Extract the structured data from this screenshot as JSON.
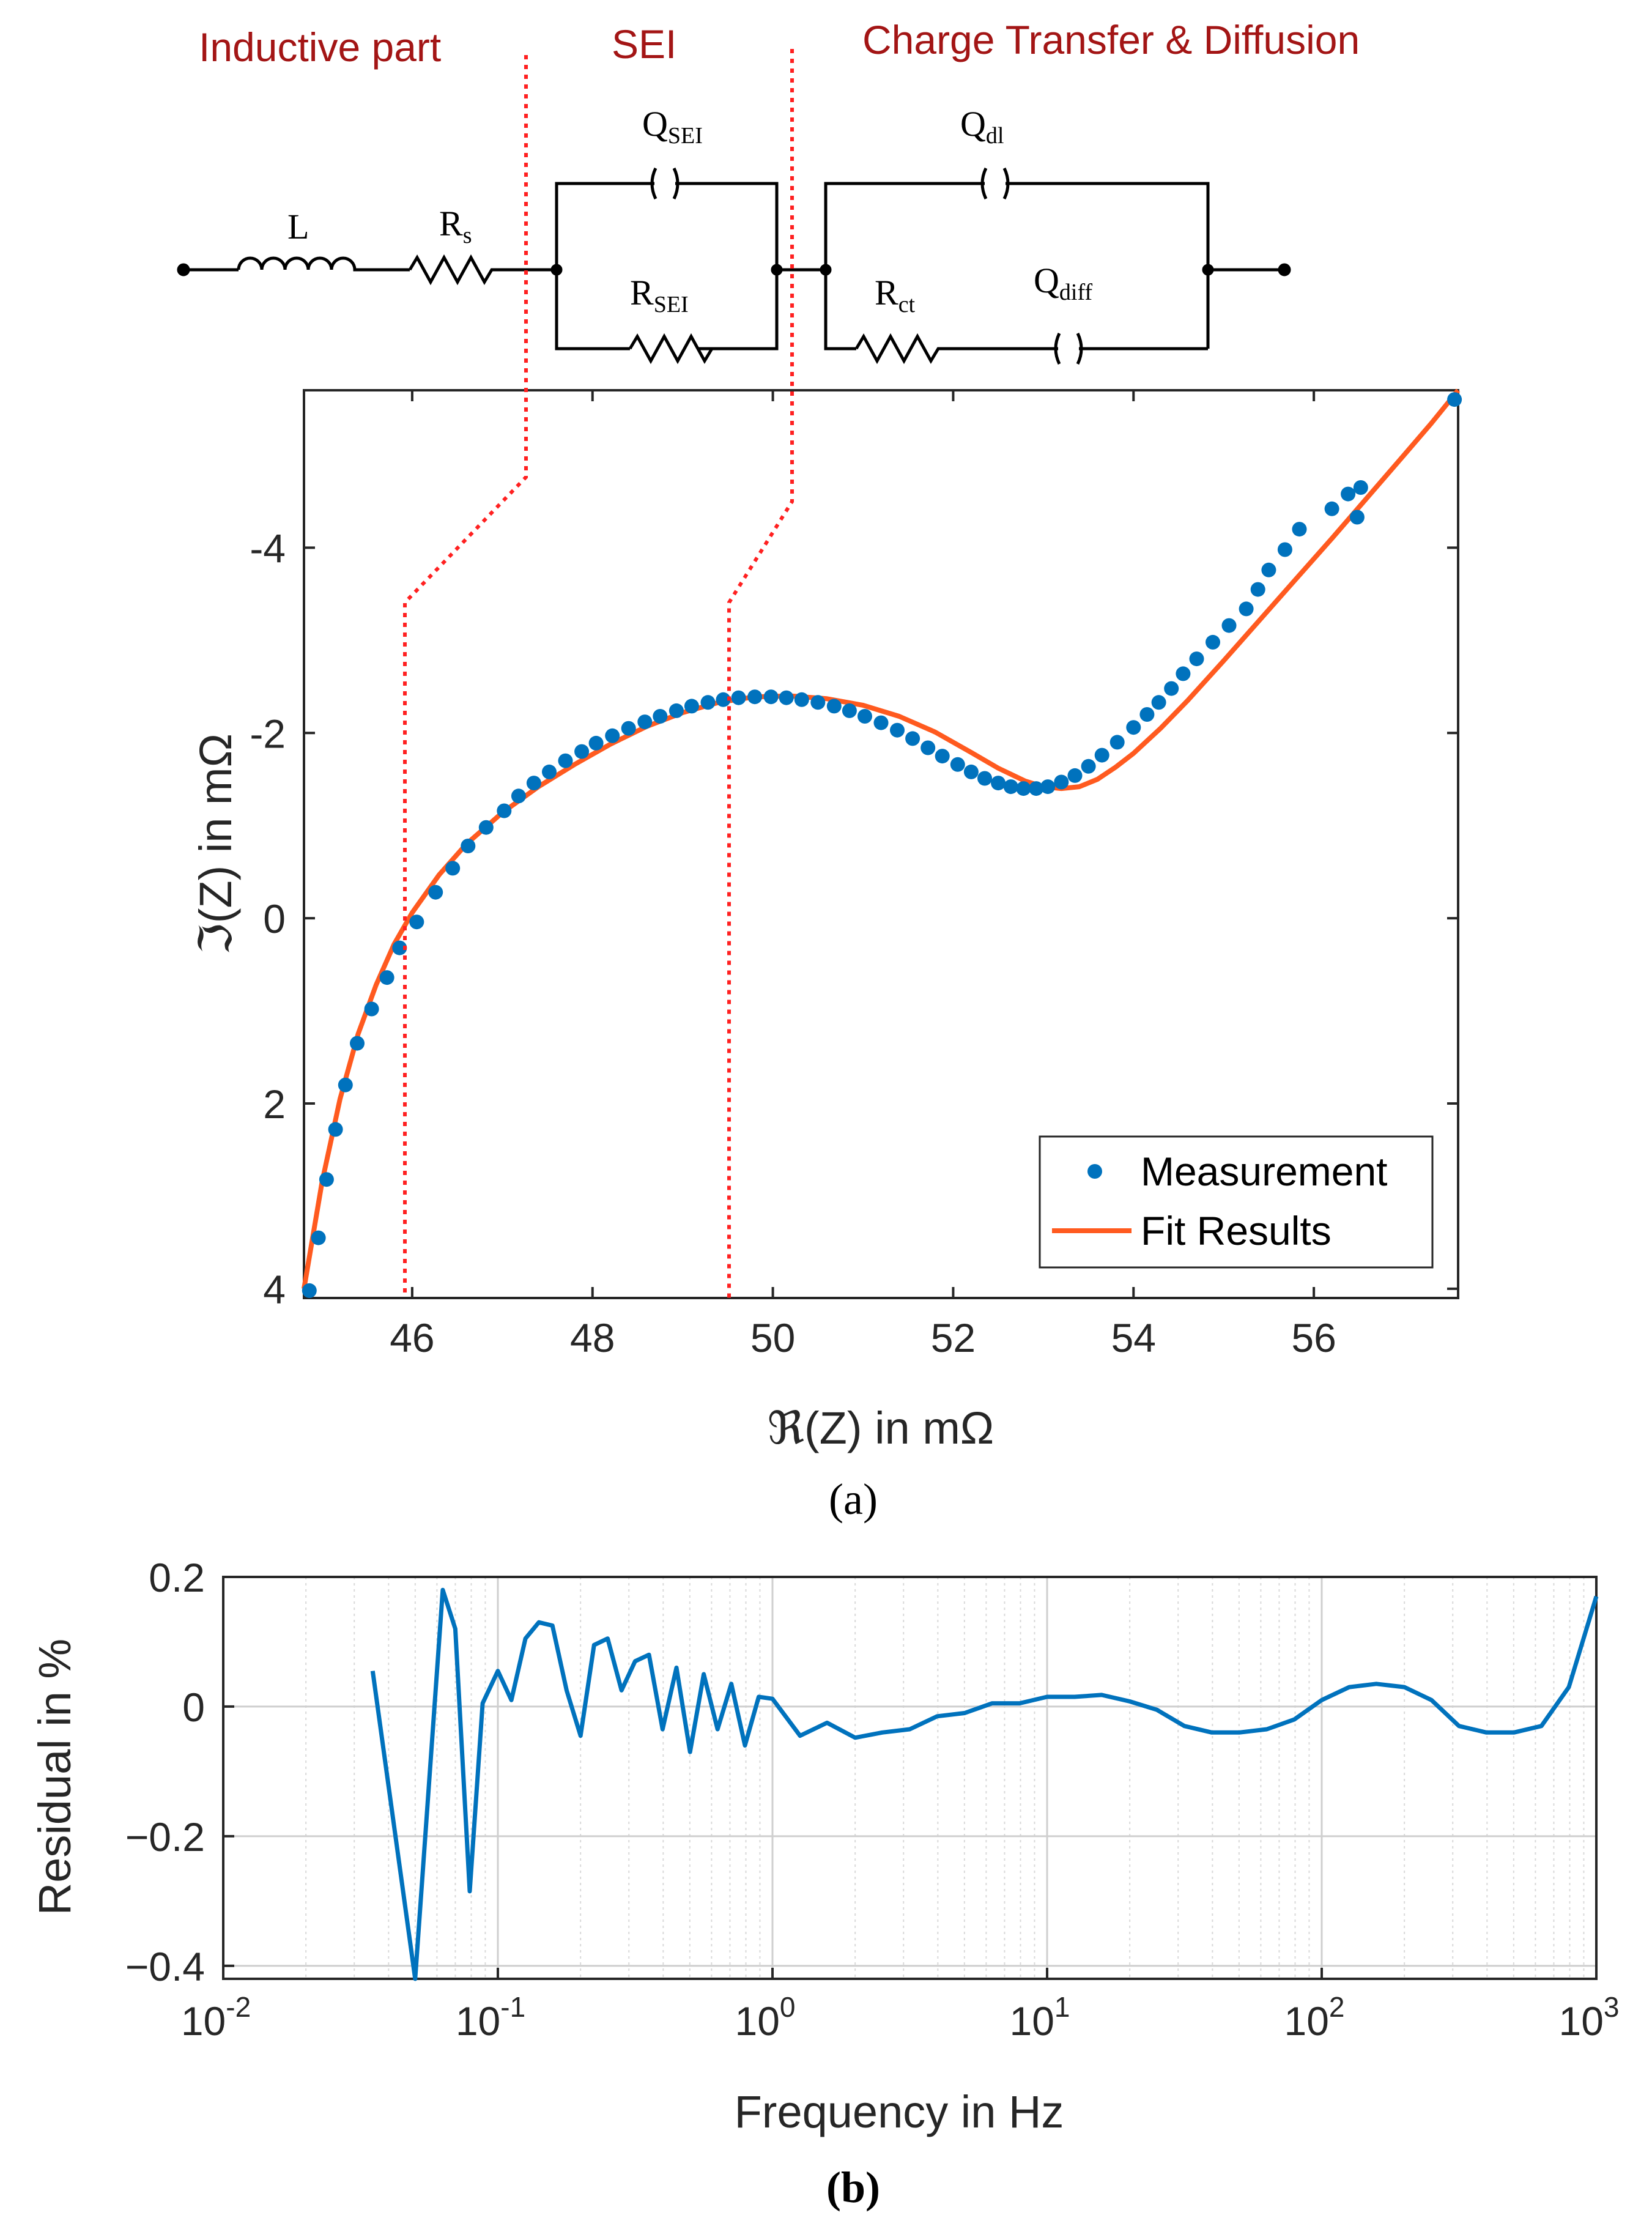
{
  "colors": {
    "region_label": "#a31515",
    "region_line": "#ff2020",
    "measurement": "#0072bd",
    "fit": "#ff5a1f",
    "residual": "#0072bd",
    "axis": "#262626",
    "grid": "#d9d9d9"
  },
  "circuit": {
    "regions": [
      "Inductive part",
      "SEI",
      "Charge Transfer & Diffusion"
    ],
    "components": {
      "L": {
        "main": "L",
        "sub": ""
      },
      "Rs": {
        "main": "R",
        "sub": "s"
      },
      "QSEI": {
        "main": "Q",
        "sub": "SEI"
      },
      "RSEI": {
        "main": "R",
        "sub": "SEI"
      },
      "Qdl": {
        "main": "Q",
        "sub": "dl"
      },
      "Rct": {
        "main": "R",
        "sub": "ct"
      },
      "Qdiff": {
        "main": "Q",
        "sub": "diff"
      }
    }
  },
  "panel_labels": {
    "a": "(a)",
    "b": "(b)"
  },
  "chart_data": [
    {
      "type": "scatter",
      "panel": "(a)",
      "title": "",
      "xlabel": "ℜ(Z) in mΩ",
      "ylabel": "ℑ(Z) in mΩ",
      "xlim": [
        44.8,
        57.6
      ],
      "ylim": [
        4.1,
        -5.7
      ],
      "y_reversed": true,
      "xticks": [
        46,
        48,
        50,
        52,
        54,
        56
      ],
      "xtick_labels": [
        "46",
        "48",
        "50",
        "52",
        "54",
        "56"
      ],
      "yticks": [
        -4,
        -2,
        0,
        2,
        4
      ],
      "ytick_labels": [
        "-4",
        "-2",
        "0",
        "2",
        "4"
      ],
      "legend": {
        "position": "bottom-right",
        "entries": [
          "Measurement",
          "Fit Results"
        ]
      },
      "series": [
        {
          "name": "Measurement",
          "kind": "scatter",
          "x": [
            44.86,
            44.96,
            45.05,
            45.15,
            45.26,
            45.39,
            45.55,
            45.72,
            45.86,
            46.05,
            46.26,
            46.45,
            46.62,
            46.82,
            47.02,
            47.18,
            47.35,
            47.52,
            47.7,
            47.88,
            48.04,
            48.22,
            48.4,
            48.58,
            48.75,
            48.93,
            49.1,
            49.28,
            49.45,
            49.62,
            49.8,
            49.98,
            50.15,
            50.32,
            50.5,
            50.68,
            50.85,
            51.02,
            51.2,
            51.38,
            51.55,
            51.72,
            51.88,
            52.05,
            52.2,
            52.35,
            52.5,
            52.64,
            52.78,
            52.92,
            53.05,
            53.2,
            53.35,
            53.5,
            53.65,
            53.82,
            54.0,
            54.15,
            54.28,
            54.42,
            54.55,
            54.7,
            54.88,
            55.06,
            55.25,
            55.38,
            55.5,
            55.68,
            55.84,
            56.2,
            56.38,
            56.48,
            56.52,
            57.56
          ],
          "y": [
            4.02,
            3.45,
            2.82,
            2.28,
            1.8,
            1.35,
            0.98,
            0.64,
            0.32,
            0.04,
            -0.28,
            -0.54,
            -0.78,
            -0.98,
            -1.16,
            -1.32,
            -1.46,
            -1.58,
            -1.7,
            -1.8,
            -1.89,
            -1.97,
            -2.05,
            -2.12,
            -2.18,
            -2.24,
            -2.29,
            -2.33,
            -2.36,
            -2.38,
            -2.39,
            -2.39,
            -2.38,
            -2.36,
            -2.33,
            -2.29,
            -2.24,
            -2.18,
            -2.11,
            -2.03,
            -1.94,
            -1.84,
            -1.75,
            -1.66,
            -1.58,
            -1.51,
            -1.46,
            -1.42,
            -1.4,
            -1.4,
            -1.42,
            -1.47,
            -1.54,
            -1.64,
            -1.76,
            -1.9,
            -2.06,
            -2.2,
            -2.33,
            -2.48,
            -2.64,
            -2.8,
            -2.98,
            -3.16,
            -3.34,
            -3.55,
            -3.76,
            -3.98,
            -4.2,
            -4.42,
            -4.58,
            -4.33,
            -4.65,
            -5.6
          ]
        },
        {
          "name": "Fit Results",
          "kind": "line",
          "x": [
            44.8,
            45.0,
            45.2,
            45.4,
            45.6,
            45.8,
            46.0,
            46.3,
            46.6,
            47.0,
            47.4,
            47.8,
            48.2,
            48.6,
            49.0,
            49.4,
            49.8,
            50.2,
            50.6,
            51.0,
            51.4,
            51.8,
            52.2,
            52.5,
            52.8,
            53.0,
            53.2,
            53.4,
            53.6,
            53.8,
            54.0,
            54.3,
            54.6,
            55.0,
            55.4,
            55.8,
            56.2,
            56.6,
            57.0,
            57.3,
            57.6
          ],
          "y": [
            4.0,
            2.85,
            1.95,
            1.25,
            0.72,
            0.28,
            -0.06,
            -0.47,
            -0.8,
            -1.14,
            -1.42,
            -1.66,
            -1.88,
            -2.07,
            -2.22,
            -2.33,
            -2.39,
            -2.4,
            -2.37,
            -2.3,
            -2.18,
            -2.01,
            -1.79,
            -1.62,
            -1.48,
            -1.42,
            -1.4,
            -1.42,
            -1.5,
            -1.63,
            -1.78,
            -2.05,
            -2.35,
            -2.78,
            -3.22,
            -3.66,
            -4.1,
            -4.55,
            -5.0,
            -5.34,
            -5.7
          ]
        }
      ]
    },
    {
      "type": "line",
      "panel": "(b)",
      "title": "",
      "xlabel": "Frequency in Hz",
      "ylabel": "Residual in %",
      "xscale": "log",
      "xlim": [
        0.01,
        1000
      ],
      "ylim": [
        -0.42,
        0.2
      ],
      "xtick_base": "10",
      "xtick_exponents": [
        "-2",
        "-1",
        "0",
        "1",
        "2",
        "3"
      ],
      "yticks": [
        0.2,
        0,
        -0.2,
        -0.4
      ],
      "ytick_labels": [
        "0.2",
        "0",
        "−0.2",
        "−0.4"
      ],
      "grid": true,
      "series": [
        {
          "name": "Residual",
          "x": [
            0.035,
            0.05,
            0.063,
            0.07,
            0.079,
            0.088,
            0.1,
            0.112,
            0.126,
            0.141,
            0.158,
            0.178,
            0.2,
            0.224,
            0.251,
            0.282,
            0.316,
            0.355,
            0.398,
            0.447,
            0.501,
            0.562,
            0.631,
            0.708,
            0.794,
            0.891,
            1.0,
            1.26,
            1.58,
            2.0,
            2.51,
            3.16,
            3.98,
            5.01,
            6.31,
            7.94,
            10.0,
            12.6,
            15.8,
            20.0,
            25.1,
            31.6,
            39.8,
            50.1,
            63.1,
            79.4,
            100,
            126,
            158,
            200,
            251,
            316,
            398,
            501,
            631,
            794,
            1000
          ],
          "y": [
            0.055,
            -0.42,
            0.18,
            0.12,
            -0.285,
            0.005,
            0.055,
            0.01,
            0.105,
            0.13,
            0.125,
            0.025,
            -0.045,
            0.095,
            0.105,
            0.025,
            0.07,
            0.08,
            -0.035,
            0.06,
            -0.07,
            0.05,
            -0.035,
            0.035,
            -0.06,
            0.015,
            0.012,
            -0.045,
            -0.025,
            -0.048,
            -0.04,
            -0.035,
            -0.015,
            -0.01,
            0.005,
            0.005,
            0.015,
            0.015,
            0.018,
            0.008,
            -0.005,
            -0.03,
            -0.04,
            -0.04,
            -0.035,
            -0.02,
            0.01,
            0.03,
            0.035,
            0.03,
            0.01,
            -0.03,
            -0.04,
            -0.04,
            -0.03,
            0.03,
            0.17
          ]
        }
      ]
    }
  ]
}
